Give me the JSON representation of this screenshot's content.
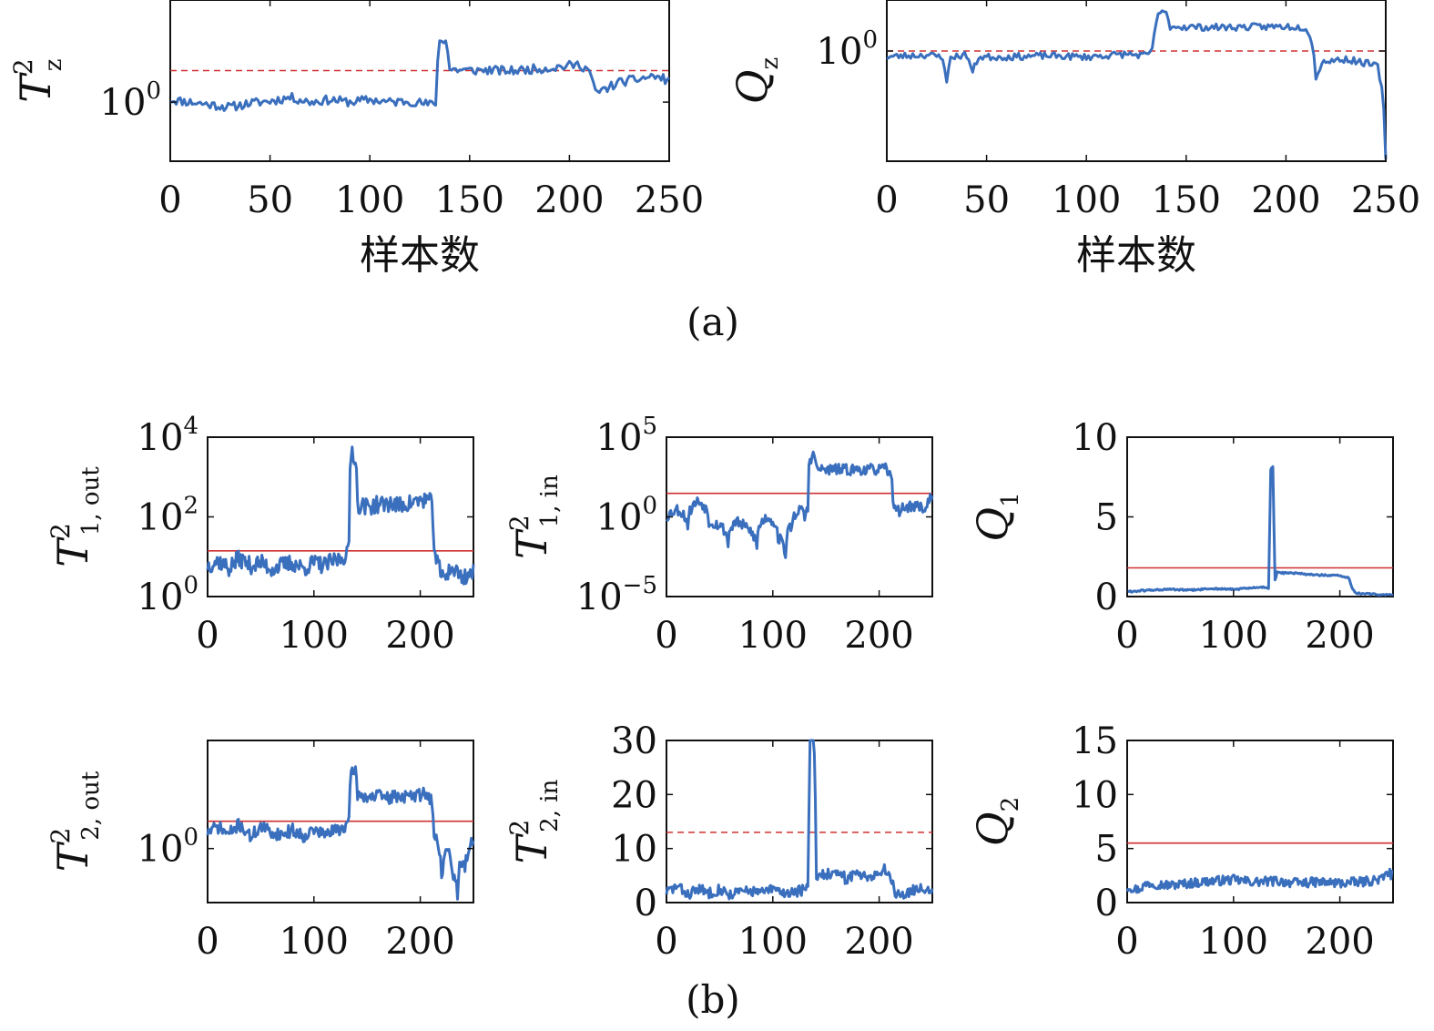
{
  "series_color": "#3a6fbd",
  "threshold_color": "#d03030",
  "captions": {
    "a": "(a)",
    "b": "(b)"
  },
  "chart_data": [
    {
      "id": "Tz",
      "type": "line",
      "panel": "a",
      "ylabel": "T",
      "ylabel_sup": "2",
      "ylabel_sub": "z",
      "xlabel": "样本数",
      "xlim": [
        0,
        250
      ],
      "xticks": [
        0,
        50,
        100,
        150,
        200,
        250
      ],
      "yscale": "log",
      "ylim": [
        0.3,
        8
      ],
      "yticks": [
        {
          "v": 1,
          "base": "10",
          "exp": "0"
        }
      ],
      "threshold": 1.9,
      "threshold_style": "dashed",
      "series": {
        "keypoints": [
          [
            0,
            1.05
          ],
          [
            10,
            1.0
          ],
          [
            20,
            0.95
          ],
          [
            30,
            0.9
          ],
          [
            40,
            0.98
          ],
          [
            50,
            1.02
          ],
          [
            60,
            1.1
          ],
          [
            70,
            1.0
          ],
          [
            80,
            1.05
          ],
          [
            90,
            1.0
          ],
          [
            100,
            1.05
          ],
          [
            110,
            1.0
          ],
          [
            120,
            1.02
          ],
          [
            130,
            0.95
          ],
          [
            133,
            1.0
          ],
          [
            135,
            3.5
          ],
          [
            138,
            3.6
          ],
          [
            140,
            1.95
          ],
          [
            150,
            1.9
          ],
          [
            160,
            1.92
          ],
          [
            170,
            1.88
          ],
          [
            180,
            1.95
          ],
          [
            190,
            2.0
          ],
          [
            200,
            2.1
          ],
          [
            205,
            2.15
          ],
          [
            210,
            1.9
          ],
          [
            213,
            1.2
          ],
          [
            218,
            1.3
          ],
          [
            225,
            1.5
          ],
          [
            235,
            1.6
          ],
          [
            242,
            1.7
          ],
          [
            250,
            1.55
          ]
        ],
        "noise": 0.04,
        "log": true,
        "seed": 11
      }
    },
    {
      "id": "Qz",
      "type": "line",
      "panel": "a",
      "ylabel": "Q",
      "ylabel_sub": "z",
      "xlabel": "样本数",
      "xlim": [
        0,
        250
      ],
      "xticks": [
        0,
        50,
        100,
        150,
        200,
        250
      ],
      "yscale": "log",
      "ylim": [
        0.05,
        4
      ],
      "yticks": [
        {
          "v": 1,
          "base": "10",
          "exp": "0"
        }
      ],
      "threshold": 1.0,
      "threshold_style": "dashed",
      "series": {
        "keypoints": [
          [
            0,
            0.85
          ],
          [
            10,
            0.88
          ],
          [
            20,
            0.9
          ],
          [
            28,
            0.85
          ],
          [
            30,
            0.4
          ],
          [
            32,
            0.85
          ],
          [
            40,
            0.9
          ],
          [
            43,
            0.55
          ],
          [
            46,
            0.85
          ],
          [
            60,
            0.85
          ],
          [
            80,
            0.88
          ],
          [
            100,
            0.85
          ],
          [
            120,
            0.92
          ],
          [
            130,
            0.88
          ],
          [
            133,
            1.0
          ],
          [
            136,
            2.8
          ],
          [
            140,
            2.75
          ],
          [
            142,
            1.95
          ],
          [
            160,
            1.9
          ],
          [
            180,
            1.92
          ],
          [
            200,
            1.95
          ],
          [
            210,
            1.9
          ],
          [
            213,
            1.3
          ],
          [
            215,
            0.45
          ],
          [
            218,
            0.75
          ],
          [
            230,
            0.8
          ],
          [
            240,
            0.72
          ],
          [
            246,
            0.65
          ],
          [
            250,
            0.05
          ]
        ],
        "noise": 0.04,
        "log": true,
        "seed": 23
      }
    },
    {
      "id": "T1out",
      "type": "line",
      "panel": "b",
      "ylabel": "T",
      "ylabel_sup": "2",
      "ylabel_sub": "1, out",
      "xlabel": "",
      "xlim": [
        0,
        250
      ],
      "xticks": [
        0,
        100,
        200
      ],
      "yscale": "log",
      "ylim": [
        1,
        10000
      ],
      "yticks": [
        {
          "v": 1,
          "base": "10",
          "exp": "0"
        },
        {
          "v": 100,
          "base": "10",
          "exp": "2"
        },
        {
          "v": 10000,
          "base": "10",
          "exp": "4"
        }
      ],
      "threshold": 14,
      "threshold_style": "solid",
      "series": {
        "keypoints": [
          [
            0,
            6
          ],
          [
            10,
            8
          ],
          [
            20,
            5
          ],
          [
            30,
            9
          ],
          [
            40,
            6
          ],
          [
            50,
            7
          ],
          [
            60,
            5
          ],
          [
            70,
            6
          ],
          [
            80,
            7
          ],
          [
            90,
            5
          ],
          [
            100,
            7
          ],
          [
            110,
            6
          ],
          [
            120,
            8
          ],
          [
            128,
            10
          ],
          [
            133,
            15
          ],
          [
            136,
            5000
          ],
          [
            139,
            2500
          ],
          [
            141,
            200
          ],
          [
            150,
            180
          ],
          [
            160,
            200
          ],
          [
            170,
            220
          ],
          [
            180,
            190
          ],
          [
            190,
            220
          ],
          [
            200,
            260
          ],
          [
            207,
            280
          ],
          [
            210,
            220
          ],
          [
            213,
            20
          ],
          [
            215,
            8
          ],
          [
            220,
            3
          ],
          [
            230,
            5
          ],
          [
            240,
            3
          ],
          [
            250,
            4
          ]
        ],
        "noise": 0.22,
        "log": true,
        "seed": 37
      }
    },
    {
      "id": "T1in",
      "type": "line",
      "panel": "b",
      "ylabel": "T",
      "ylabel_sup": "2",
      "ylabel_sub": "1, in",
      "xlabel": "",
      "xlim": [
        0,
        250
      ],
      "xticks": [
        0,
        100,
        200
      ],
      "yscale": "log",
      "ylim": [
        1e-05,
        100000
      ],
      "yticks": [
        {
          "v": 1e-05,
          "base": "10",
          "exp": "−5"
        },
        {
          "v": 1,
          "base": "10",
          "exp": "0"
        },
        {
          "v": 100000,
          "base": "10",
          "exp": "5"
        }
      ],
      "threshold": 30,
      "threshold_style": "solid",
      "series": {
        "keypoints": [
          [
            0,
            1
          ],
          [
            10,
            3
          ],
          [
            20,
            0.3
          ],
          [
            30,
            10
          ],
          [
            40,
            0.5
          ],
          [
            50,
            0.3
          ],
          [
            58,
            0.02
          ],
          [
            65,
            0.5
          ],
          [
            75,
            0.2
          ],
          [
            85,
            0.01
          ],
          [
            95,
            1
          ],
          [
            105,
            0.05
          ],
          [
            112,
            0.003
          ],
          [
            118,
            0.3
          ],
          [
            125,
            3
          ],
          [
            130,
            1
          ],
          [
            133,
            3
          ],
          [
            136,
            5000
          ],
          [
            139,
            8000
          ],
          [
            141,
            1000
          ],
          [
            150,
            900
          ],
          [
            160,
            950
          ],
          [
            170,
            900
          ],
          [
            180,
            950
          ],
          [
            190,
            900
          ],
          [
            200,
            950
          ],
          [
            207,
            1000
          ],
          [
            210,
            400
          ],
          [
            213,
            10
          ],
          [
            217,
            2
          ],
          [
            225,
            4
          ],
          [
            235,
            5
          ],
          [
            245,
            3
          ],
          [
            250,
            30
          ]
        ],
        "noise": 0.35,
        "log": true,
        "seed": 53
      }
    },
    {
      "id": "Q1",
      "type": "line",
      "panel": "b",
      "ylabel": "Q",
      "ylabel_sub": "1",
      "xlabel": "",
      "xlim": [
        0,
        250
      ],
      "xticks": [
        0,
        100,
        200
      ],
      "yscale": "linear",
      "ylim": [
        0,
        10
      ],
      "yticks": [
        {
          "v": 0,
          "label": "0"
        },
        {
          "v": 5,
          "label": "5"
        },
        {
          "v": 10,
          "label": "10"
        }
      ],
      "threshold": 1.8,
      "threshold_style": "solid",
      "series": {
        "keypoints": [
          [
            0,
            0.3
          ],
          [
            20,
            0.4
          ],
          [
            40,
            0.45
          ],
          [
            60,
            0.4
          ],
          [
            80,
            0.5
          ],
          [
            100,
            0.45
          ],
          [
            120,
            0.55
          ],
          [
            130,
            0.6
          ],
          [
            133,
            0.5
          ],
          [
            135,
            8
          ],
          [
            137,
            8.1
          ],
          [
            139,
            1.0
          ],
          [
            141,
            1.5
          ],
          [
            160,
            1.45
          ],
          [
            180,
            1.35
          ],
          [
            200,
            1.3
          ],
          [
            208,
            1.2
          ],
          [
            212,
            0.5
          ],
          [
            215,
            0.2
          ],
          [
            230,
            0.15
          ],
          [
            250,
            0.1
          ]
        ],
        "noise": 0.05,
        "log": false,
        "seed": 61
      }
    },
    {
      "id": "T2out",
      "type": "line",
      "panel": "b",
      "ylabel": "T",
      "ylabel_sup": "2",
      "ylabel_sub": "2, out",
      "xlabel": "",
      "xlim": [
        0,
        250
      ],
      "xticks": [
        0,
        100,
        200
      ],
      "yscale": "log",
      "ylim": [
        0.1,
        100
      ],
      "yticks": [
        {
          "v": 1,
          "base": "10",
          "exp": "0"
        }
      ],
      "threshold": 3.2,
      "threshold_style": "solid",
      "series": {
        "keypoints": [
          [
            0,
            2
          ],
          [
            10,
            2.5
          ],
          [
            20,
            1.8
          ],
          [
            30,
            2.8
          ],
          [
            40,
            1.6
          ],
          [
            50,
            2.5
          ],
          [
            60,
            2
          ],
          [
            70,
            1.8
          ],
          [
            80,
            2.2
          ],
          [
            90,
            1.7
          ],
          [
            100,
            2.2
          ],
          [
            110,
            1.8
          ],
          [
            120,
            2.2
          ],
          [
            128,
            2.5
          ],
          [
            133,
            3
          ],
          [
            136,
            30
          ],
          [
            139,
            28
          ],
          [
            141,
            10
          ],
          [
            150,
            9
          ],
          [
            160,
            9.5
          ],
          [
            170,
            8.5
          ],
          [
            180,
            9.5
          ],
          [
            190,
            9
          ],
          [
            200,
            10
          ],
          [
            205,
            11
          ],
          [
            210,
            8
          ],
          [
            213,
            1.5
          ],
          [
            216,
            1.5
          ],
          [
            220,
            0.3
          ],
          [
            225,
            1
          ],
          [
            230,
            0.4
          ],
          [
            235,
            0.15
          ],
          [
            238,
            0.6
          ],
          [
            242,
            0.4
          ],
          [
            248,
            1.5
          ],
          [
            250,
            1.2
          ]
        ],
        "noise": 0.12,
        "log": true,
        "seed": 71
      }
    },
    {
      "id": "T2in",
      "type": "line",
      "panel": "b",
      "ylabel": "T",
      "ylabel_sup": "2",
      "ylabel_sub": "2, in",
      "xlabel": "",
      "xlim": [
        0,
        250
      ],
      "xticks": [
        0,
        100,
        200
      ],
      "yscale": "linear",
      "ylim": [
        0,
        30
      ],
      "yticks": [
        {
          "v": 0,
          "label": "0"
        },
        {
          "v": 10,
          "label": "10"
        },
        {
          "v": 20,
          "label": "20"
        },
        {
          "v": 30,
          "label": "30"
        }
      ],
      "threshold": 13,
      "threshold_style": "dashed",
      "series": {
        "keypoints": [
          [
            0,
            2
          ],
          [
            10,
            3
          ],
          [
            20,
            1.5
          ],
          [
            30,
            2.5
          ],
          [
            40,
            1.8
          ],
          [
            50,
            2.5
          ],
          [
            60,
            1.5
          ],
          [
            70,
            2
          ],
          [
            80,
            2.2
          ],
          [
            90,
            1.8
          ],
          [
            100,
            2.5
          ],
          [
            110,
            1.8
          ],
          [
            120,
            2
          ],
          [
            128,
            2.3
          ],
          [
            133,
            2.5
          ],
          [
            135,
            30
          ],
          [
            137,
            30
          ],
          [
            139,
            30
          ],
          [
            141,
            5
          ],
          [
            150,
            5.5
          ],
          [
            160,
            5
          ],
          [
            170,
            4.5
          ],
          [
            180,
            5.5
          ],
          [
            190,
            5
          ],
          [
            200,
            5.5
          ],
          [
            208,
            6
          ],
          [
            212,
            4
          ],
          [
            215,
            2
          ],
          [
            222,
            1.5
          ],
          [
            230,
            2
          ],
          [
            240,
            3
          ],
          [
            250,
            2
          ]
        ],
        "noise": 0.9,
        "log": false,
        "seed": 83
      }
    },
    {
      "id": "Q2",
      "type": "line",
      "panel": "b",
      "ylabel": "Q",
      "ylabel_sub": "2",
      "xlabel": "",
      "xlim": [
        0,
        250
      ],
      "xticks": [
        0,
        100,
        200
      ],
      "yscale": "linear",
      "ylim": [
        0,
        15
      ],
      "yticks": [
        {
          "v": 0,
          "label": "0"
        },
        {
          "v": 5,
          "label": "5"
        },
        {
          "v": 10,
          "label": "10"
        },
        {
          "v": 15,
          "label": "15"
        }
      ],
      "threshold": 5.5,
      "threshold_style": "solid",
      "series": {
        "keypoints": [
          [
            0,
            1.5
          ],
          [
            10,
            1.2
          ],
          [
            20,
            1.8
          ],
          [
            40,
            1.6
          ],
          [
            60,
            1.8
          ],
          [
            80,
            2.0
          ],
          [
            100,
            2.1
          ],
          [
            120,
            1.9
          ],
          [
            140,
            2.0
          ],
          [
            160,
            1.8
          ],
          [
            180,
            1.9
          ],
          [
            200,
            1.8
          ],
          [
            220,
            1.9
          ],
          [
            240,
            2.2
          ],
          [
            245,
            2.8
          ],
          [
            250,
            2.5
          ]
        ],
        "noise": 0.4,
        "log": false,
        "seed": 97
      }
    }
  ]
}
